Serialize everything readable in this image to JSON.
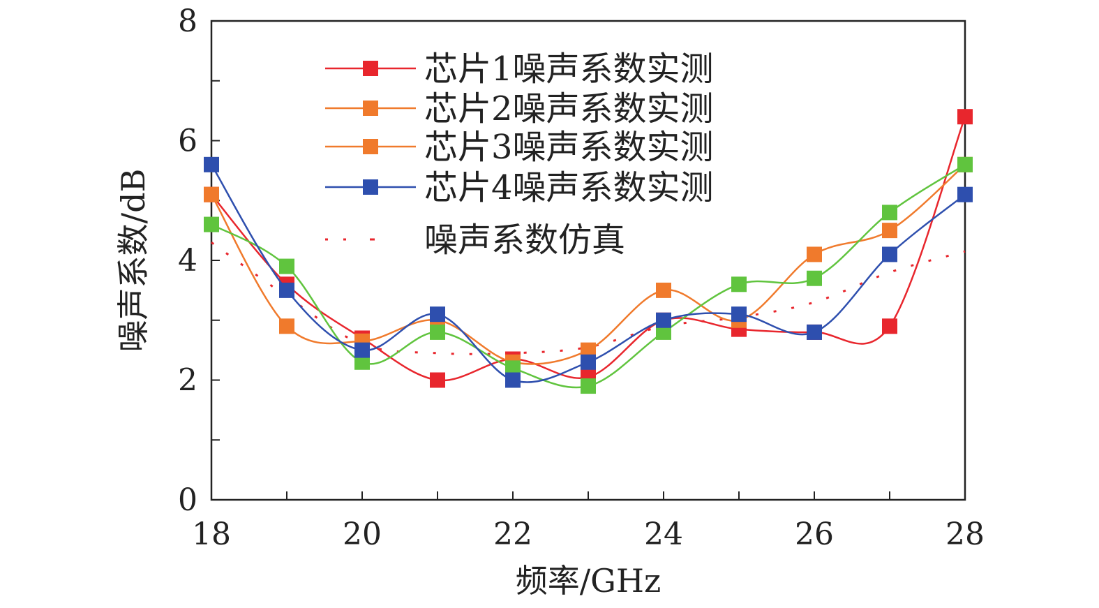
{
  "chart_data": {
    "type": "line",
    "xlabel": "频率/GHz",
    "ylabel": "噪声系数/dB",
    "xlim": [
      18,
      28
    ],
    "ylim": [
      0,
      8
    ],
    "x_ticks": [
      "18",
      "20",
      "22",
      "24",
      "26",
      "28"
    ],
    "y_ticks": [
      "0",
      "2",
      "4",
      "6",
      "8"
    ],
    "x": [
      18,
      19,
      20,
      21,
      22,
      23,
      24,
      25,
      26,
      27,
      28
    ],
    "series": [
      {
        "name": "芯片1噪声系数实测",
        "color": "#e8262d",
        "marker": "square",
        "values": [
          5.1,
          3.6,
          2.7,
          2.0,
          2.35,
          2.05,
          3.0,
          2.85,
          2.8,
          2.9,
          6.4
        ]
      },
      {
        "name": "芯片2噪声系数实测",
        "color": "#f07a2c",
        "marker": "square",
        "values": [
          5.1,
          2.9,
          2.65,
          3.0,
          2.3,
          2.5,
          3.5,
          3.0,
          4.1,
          4.5,
          5.6
        ]
      },
      {
        "name": "芯片3噪声系数实测",
        "color": "#60c43e",
        "legend_color": "#f07a2c",
        "marker": "square",
        "values": [
          4.6,
          3.9,
          2.3,
          2.8,
          2.2,
          1.9,
          2.8,
          3.6,
          3.7,
          4.8,
          5.6
        ]
      },
      {
        "name": "芯片4噪声系数实测",
        "color": "#2e4fae",
        "marker": "square",
        "values": [
          5.6,
          3.5,
          2.5,
          3.1,
          2.0,
          2.3,
          3.0,
          3.1,
          2.8,
          4.1,
          5.1
        ]
      },
      {
        "name": "噪声系数仿真",
        "color": "#e8262d",
        "style": "dotted",
        "values": [
          4.3,
          3.4,
          2.6,
          2.45,
          2.45,
          2.55,
          2.9,
          3.05,
          3.3,
          3.8,
          4.15
        ]
      }
    ]
  }
}
